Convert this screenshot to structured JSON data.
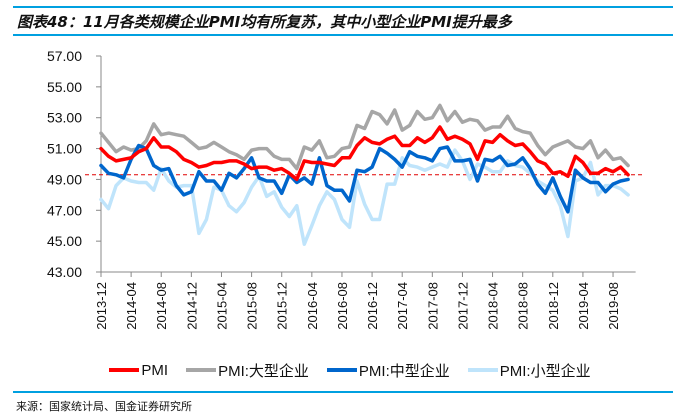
{
  "title": "图表48：11月各类规模企业PMI均有所复苏，其中小型企业PMI提升最多",
  "source": "来源：国家统计局、国金证券研究所",
  "chart_data": {
    "type": "line",
    "title": "图表48：11月各类规模企业PMI均有所复苏，其中小型企业PMI提升最多",
    "xlabel": "",
    "ylabel": "",
    "ylim": [
      43,
      57
    ],
    "yticks": [
      "43.00",
      "45.00",
      "47.00",
      "49.00",
      "51.00",
      "53.00",
      "55.00",
      "57.00"
    ],
    "yticks_values": [
      43,
      45,
      47,
      49,
      51,
      53,
      55,
      57
    ],
    "x_start": "2013-12",
    "x_end": "2019-10",
    "xtick_labels": [
      "2013-12",
      "2014-04",
      "2014-08",
      "2014-12",
      "2015-04",
      "2015-08",
      "2015-12",
      "2016-04",
      "2016-08",
      "2016-12",
      "2017-04",
      "2017-08",
      "2017-12",
      "2018-04",
      "2018-08",
      "2018-12",
      "2019-04",
      "2019-08"
    ],
    "reference_line": 49.3,
    "grid": false,
    "legend_position": "bottom",
    "series": [
      {
        "name": "PMI",
        "color": "#ff0000",
        "values": [
          51.0,
          50.5,
          50.2,
          50.3,
          50.4,
          50.8,
          51.0,
          51.7,
          51.1,
          51.1,
          50.8,
          50.3,
          50.1,
          49.8,
          49.9,
          50.1,
          50.1,
          50.2,
          50.2,
          50.0,
          49.7,
          49.8,
          49.8,
          49.6,
          49.7,
          49.4,
          49.0,
          50.2,
          50.1,
          50.1,
          50.0,
          49.9,
          50.4,
          50.4,
          51.2,
          51.7,
          51.4,
          51.3,
          51.6,
          51.8,
          51.2,
          51.2,
          51.7,
          51.4,
          51.7,
          52.4,
          51.6,
          51.8,
          51.6,
          51.3,
          50.3,
          51.5,
          51.4,
          51.9,
          51.5,
          51.2,
          51.3,
          50.8,
          50.2,
          50.0,
          49.4,
          49.5,
          49.2,
          50.5,
          50.1,
          49.4,
          49.4,
          49.7,
          49.5,
          49.8,
          49.3
        ]
      },
      {
        "name": "PMI:大型企业",
        "color": "#a6a6a6",
        "values": [
          52.0,
          51.4,
          50.8,
          51.1,
          50.9,
          51.0,
          51.5,
          52.6,
          51.9,
          52.0,
          51.9,
          51.8,
          51.4,
          51.0,
          51.1,
          51.4,
          51.1,
          50.8,
          50.6,
          50.3,
          50.9,
          51.0,
          51.0,
          50.5,
          50.3,
          50.3,
          49.7,
          51.1,
          50.9,
          51.5,
          50.4,
          50.5,
          51.0,
          51.1,
          52.5,
          52.3,
          53.4,
          53.2,
          52.6,
          53.5,
          52.2,
          52.5,
          53.4,
          52.9,
          53.0,
          53.8,
          52.8,
          53.4,
          52.7,
          52.9,
          52.8,
          52.2,
          52.4,
          52.4,
          53.1,
          52.3,
          52.1,
          52.0,
          51.2,
          50.6,
          51.1,
          51.3,
          51.5,
          51.1,
          51.0,
          51.5,
          50.4,
          50.9,
          50.3,
          50.4,
          49.9
        ]
      },
      {
        "name": "PMI:中型企业",
        "color": "#0066cc",
        "values": [
          49.9,
          49.4,
          49.3,
          49.1,
          50.3,
          51.2,
          51.0,
          49.9,
          49.6,
          49.7,
          48.6,
          48.0,
          48.2,
          49.5,
          48.9,
          48.9,
          48.3,
          49.4,
          49.1,
          49.7,
          50.4,
          49.1,
          48.9,
          48.9,
          48.1,
          49.3,
          48.8,
          49.1,
          48.7,
          50.4,
          48.6,
          48.3,
          48.3,
          47.6,
          49.6,
          49.5,
          49.8,
          51.0,
          50.7,
          50.3,
          49.8,
          50.8,
          50.5,
          50.4,
          50.2,
          51.0,
          51.1,
          50.2,
          50.2,
          50.3,
          48.9,
          50.3,
          50.2,
          50.5,
          49.9,
          50.0,
          50.4,
          49.7,
          48.7,
          48.1,
          49.1,
          47.9,
          46.9,
          49.6,
          49.1,
          48.8,
          48.8,
          48.2,
          48.7,
          48.9,
          49.0
        ]
      },
      {
        "name": "PMI:小型企业",
        "color": "#bfe4fb",
        "values": [
          47.7,
          47.1,
          48.6,
          49.1,
          48.9,
          48.8,
          48.8,
          48.3,
          49.7,
          48.9,
          48.5,
          48.6,
          48.6,
          45.5,
          46.4,
          48.5,
          48.3,
          47.3,
          46.9,
          47.5,
          48.5,
          49.2,
          47.9,
          48.2,
          47.2,
          46.6,
          47.3,
          44.8,
          46.0,
          47.3,
          48.2,
          47.7,
          46.4,
          45.9,
          48.9,
          47.4,
          46.4,
          46.4,
          48.7,
          48.7,
          50.4,
          49.9,
          49.8,
          49.6,
          49.8,
          50.0,
          49.8,
          50.9,
          50.2,
          49.0,
          50.0,
          49.8,
          49.5,
          49.5,
          50.2,
          49.9,
          49.8,
          49.4,
          48.9,
          48.6,
          48.3,
          47.3,
          45.3,
          48.9,
          49.1,
          50.1,
          48.0,
          48.6,
          48.6,
          48.4,
          48.0
        ]
      }
    ]
  }
}
